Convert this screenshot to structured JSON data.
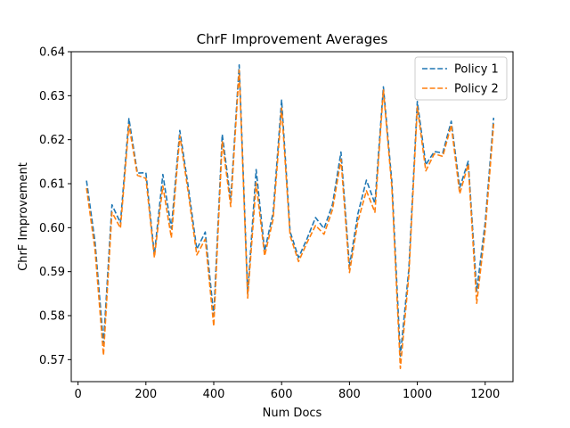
{
  "chart_data": {
    "type": "line",
    "title": "ChrF Improvement Averages",
    "xlabel": "Num Docs",
    "ylabel": "ChrF Improvement",
    "xlim": [
      -20,
      1282
    ],
    "ylim": [
      0.565,
      0.64
    ],
    "x_ticks": [
      0,
      200,
      400,
      600,
      800,
      1000,
      1200
    ],
    "x_tick_labels": [
      "0",
      "200",
      "400",
      "600",
      "800",
      "1000",
      "1200"
    ],
    "y_ticks": [
      0.57,
      0.58,
      0.59,
      0.6,
      0.61,
      0.62,
      0.63,
      0.64
    ],
    "y_tick_labels": [
      "0.57",
      "0.58",
      "0.59",
      "0.60",
      "0.61",
      "0.62",
      "0.63",
      "0.64"
    ],
    "grid": false,
    "legend_position": "top-right",
    "x": [
      25,
      50,
      75,
      100,
      125,
      150,
      175,
      200,
      225,
      250,
      275,
      300,
      325,
      350,
      375,
      400,
      425,
      450,
      475,
      500,
      525,
      550,
      575,
      600,
      625,
      650,
      675,
      700,
      725,
      750,
      775,
      800,
      825,
      850,
      875,
      900,
      925,
      950,
      975,
      1000,
      1025,
      1050,
      1075,
      1100,
      1125,
      1150,
      1175,
      1200,
      1225
    ],
    "series": [
      {
        "name": "Policy 1",
        "color": "#1f77b4",
        "values": [
          0.6107,
          0.5968,
          0.5737,
          0.6052,
          0.6011,
          0.6248,
          0.6124,
          0.6125,
          0.5939,
          0.6121,
          0.5998,
          0.6221,
          0.6092,
          0.5951,
          0.599,
          0.58,
          0.6212,
          0.6063,
          0.637,
          0.5851,
          0.6132,
          0.5947,
          0.6034,
          0.629,
          0.5991,
          0.5932,
          0.5975,
          0.6023,
          0.5998,
          0.6053,
          0.6172,
          0.5912,
          0.6032,
          0.6108,
          0.6055,
          0.632,
          0.6104,
          0.5708,
          0.5906,
          0.6287,
          0.6143,
          0.6173,
          0.617,
          0.6242,
          0.6091,
          0.6151,
          0.5856,
          0.6011,
          0.625
        ]
      },
      {
        "name": "Policy 2",
        "color": "#ff7f0e",
        "values": [
          0.609,
          0.595,
          0.571,
          0.6035,
          0.5999,
          0.6234,
          0.6119,
          0.6112,
          0.5932,
          0.6095,
          0.5977,
          0.6209,
          0.6079,
          0.5938,
          0.5974,
          0.5776,
          0.6197,
          0.6048,
          0.6358,
          0.584,
          0.6102,
          0.5936,
          0.6019,
          0.6272,
          0.5982,
          0.5923,
          0.5966,
          0.6005,
          0.5985,
          0.6041,
          0.6155,
          0.5898,
          0.6015,
          0.6084,
          0.6035,
          0.6313,
          0.6091,
          0.568,
          0.5891,
          0.6275,
          0.6129,
          0.6168,
          0.6162,
          0.6233,
          0.6077,
          0.6144,
          0.5828,
          0.5994,
          0.6236
        ]
      }
    ]
  }
}
